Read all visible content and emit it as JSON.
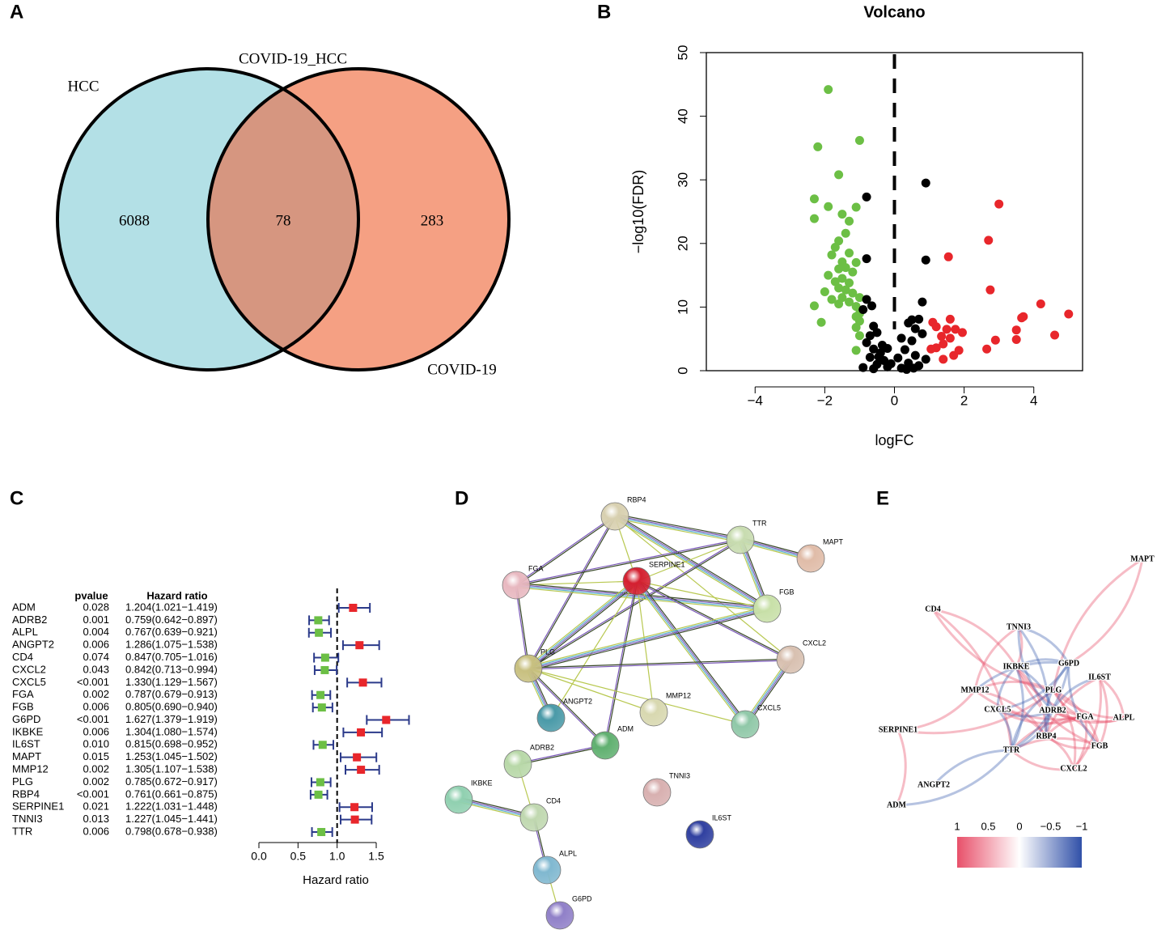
{
  "chart_data": [
    {
      "type": "venn",
      "panel": "A",
      "sets": [
        "HCC",
        "COVID-19"
      ],
      "intersection_label": "COVID-19_HCC",
      "counts": [
        6088,
        78,
        283
      ],
      "colors": [
        "#b3e0e6",
        "#f5a083",
        "#d69680"
      ]
    },
    {
      "type": "scatter",
      "panel": "B",
      "title": "Volcano",
      "xlabel": "logFC",
      "ylabel": "−log10(FDR)",
      "xlim": [
        -5.4,
        5.4
      ],
      "ylim": [
        0,
        50
      ],
      "xticks": [
        {
          "value": -4,
          "label": "−4"
        },
        {
          "value": -2,
          "label": "−2"
        },
        0,
        2,
        4
      ],
      "yticks": [
        0,
        10,
        20,
        30,
        40,
        50
      ],
      "vline": 0,
      "series": [
        {
          "color": "#6cbf45",
          "x": [
            -1.9,
            -2.2,
            -1.0,
            -1.6,
            -2.3,
            -1.9,
            -1.1,
            -1.5,
            -2.3,
            -1.3,
            -1.4,
            -1.6,
            -1.7,
            -1.8,
            -1.3,
            -1.5,
            -1.1,
            -1.6,
            -1.4,
            -1.2,
            -1.9,
            -1.5,
            -1.7,
            -1.3,
            -1.6,
            -1.4,
            -2.0,
            -1.2,
            -1.5,
            -1.8,
            -1.0,
            -1.3,
            -1.6,
            -2.3,
            -1.1,
            -1.0,
            -1.1,
            -1.0,
            -2.1,
            -1.1,
            -1.0,
            -1.1
          ],
          "values": [
            44.2,
            35.2,
            36.2,
            30.8,
            27,
            25.8,
            25.7,
            24.6,
            23.9,
            23.5,
            21.6,
            20.4,
            19.4,
            18.2,
            18.5,
            17.1,
            17,
            16,
            16.2,
            15.5,
            15,
            14.5,
            14,
            13.8,
            13,
            12.7,
            12.4,
            12.2,
            11.5,
            11.2,
            11.5,
            10.8,
            10.5,
            10.2,
            10.1,
            9,
            8.5,
            7.8,
            7.6,
            6.8,
            5.5,
            3.2
          ]
        },
        {
          "color": "#e8262b",
          "x": [
            3.0,
            2.7,
            1.55,
            2.75,
            4.2,
            5.0,
            3.7,
            3.65,
            1.1,
            1.6,
            1.2,
            1.5,
            1.75,
            1.95,
            3.5,
            1.35,
            1.6,
            4.6,
            2.9,
            3.5,
            1.4,
            1.2,
            1.05,
            2.65,
            1.85,
            1.7,
            1.4
          ],
          "values": [
            26.2,
            20.5,
            17.9,
            12.7,
            10.5,
            8.9,
            8.5,
            8.3,
            7.6,
            8.1,
            6.9,
            6.5,
            6.5,
            6.0,
            6.4,
            5.4,
            5.1,
            5.6,
            4.8,
            4.9,
            4.2,
            3.6,
            3.4,
            3.4,
            3.2,
            2.4,
            1.8
          ]
        },
        {
          "color": "#000000",
          "x": [
            0.9,
            -0.8,
            0.9,
            -0.8,
            0.8,
            -0.8,
            -0.65,
            -0.9,
            0.7,
            0.4,
            0.5,
            -0.6,
            -0.7,
            -0.5,
            -0.8,
            -0.6,
            -0.4,
            -0.7,
            -0.3,
            -0.5,
            -0.2,
            -0.9,
            0.2,
            0.4,
            0.6,
            0.3,
            0.5,
            0.8,
            0.6,
            0.1,
            -0.1,
            0.7,
            -0.6,
            0.35,
            -0.35,
            0.2,
            -0.2,
            0.9,
            -0.45,
            0.55
          ],
          "values": [
            29.5,
            27.3,
            17.4,
            17.6,
            10.8,
            11.2,
            10.2,
            9.6,
            8.1,
            7.5,
            8.0,
            7,
            5.5,
            6,
            4.4,
            3.4,
            2.8,
            2.1,
            1.6,
            1.0,
            0.6,
            0.5,
            0.4,
            1.2,
            2.4,
            3.3,
            4.7,
            5.8,
            6.6,
            2.0,
            1.1,
            0.8,
            0.3,
            0.2,
            4.0,
            5.1,
            3.5,
            1.8,
            2.2,
            0.4
          ]
        }
      ]
    },
    {
      "type": "forest",
      "panel": "C",
      "columns": [
        "pvalue",
        "Hazard ratio"
      ],
      "categories": [
        "ADM",
        "ADRB2",
        "ALPL",
        "ANGPT2",
        "CD4",
        "CXCL2",
        "CXCL5",
        "FGA",
        "FGB",
        "G6PD",
        "IKBKE",
        "IL6ST",
        "MAPT",
        "MMP12",
        "PLG",
        "RBP4",
        "SERPINE1",
        "TNNI3",
        "TTR"
      ],
      "pvalues": [
        "0.028",
        "0.001",
        "0.004",
        "0.006",
        "0.074",
        "0.043",
        "<0.001",
        "0.002",
        "0.006",
        "<0.001",
        "0.006",
        "0.010",
        "0.015",
        "0.002",
        "0.002",
        "<0.001",
        "0.021",
        "0.013",
        "0.006"
      ],
      "values": [
        1.204,
        0.759,
        0.767,
        1.286,
        0.847,
        0.842,
        1.33,
        0.787,
        0.805,
        1.627,
        1.304,
        0.815,
        1.253,
        1.305,
        0.785,
        0.761,
        1.222,
        1.227,
        0.798
      ],
      "lower": [
        1.021,
        0.642,
        0.639,
        1.075,
        0.705,
        0.713,
        1.129,
        0.679,
        0.69,
        1.379,
        1.08,
        0.698,
        1.045,
        1.107,
        0.672,
        0.661,
        1.031,
        1.045,
        0.678
      ],
      "upper": [
        1.419,
        0.897,
        0.921,
        1.538,
        1.016,
        0.994,
        1.567,
        0.913,
        0.94,
        1.919,
        1.574,
        0.952,
        1.502,
        1.538,
        0.917,
        0.875,
        1.448,
        1.441,
        0.938
      ],
      "value_labels": [
        "1.204(1.021−1.419)",
        "0.759(0.642−0.897)",
        "0.767(0.639−0.921)",
        "1.286(1.075−1.538)",
        "0.847(0.705−1.016)",
        "0.842(0.713−0.994)",
        "1.330(1.129−1.567)",
        "0.787(0.679−0.913)",
        "0.805(0.690−0.940)",
        "1.627(1.379−1.919)",
        "1.304(1.080−1.574)",
        "0.815(0.698−0.952)",
        "1.253(1.045−1.502)",
        "1.305(1.107−1.538)",
        "0.785(0.672−0.917)",
        "0.761(0.661−0.875)",
        "1.222(1.031−1.448)",
        "1.227(1.045−1.441)",
        "0.798(0.678−0.938)"
      ],
      "xlim": [
        0,
        1.5
      ],
      "xticks": [
        {
          "value": 0,
          "label": "0.0"
        },
        0.5,
        {
          "value": 1,
          "label": "1.0"
        },
        1.5
      ],
      "xlabel": "Hazard ratio",
      "refline": 1,
      "color_above": "#e8262b",
      "color_below": "#6cbf45",
      "ci_color": "#2b3a8a"
    },
    {
      "type": "network",
      "panel": "D",
      "nodes": [
        "RBP4",
        "TTR",
        "MAPT",
        "FGA",
        "SERPINE1",
        "FGB",
        "PLG",
        "CXCL2",
        "ANGPT2",
        "MMP12",
        "CXCL5",
        "ADM",
        "ADRB2",
        "IKBKE",
        "CD4",
        "TNNI3",
        "IL6ST",
        "ALPL",
        "G6PD"
      ],
      "edges": [
        [
          "RBP4",
          "TTR"
        ],
        [
          "RBP4",
          "FGA"
        ],
        [
          "RBP4",
          "SERPINE1"
        ],
        [
          "RBP4",
          "FGB"
        ],
        [
          "RBP4",
          "PLG"
        ],
        [
          "RBP4",
          "CXCL2"
        ],
        [
          "TTR",
          "MAPT"
        ],
        [
          "TTR",
          "FGA"
        ],
        [
          "TTR",
          "SERPINE1"
        ],
        [
          "TTR",
          "FGB"
        ],
        [
          "TTR",
          "PLG"
        ],
        [
          "FGA",
          "SERPINE1"
        ],
        [
          "FGA",
          "FGB"
        ],
        [
          "FGA",
          "PLG"
        ],
        [
          "SERPINE1",
          "FGB"
        ],
        [
          "SERPINE1",
          "PLG"
        ],
        [
          "SERPINE1",
          "CXCL2"
        ],
        [
          "SERPINE1",
          "MMP12"
        ],
        [
          "SERPINE1",
          "CXCL5"
        ],
        [
          "SERPINE1",
          "ADM"
        ],
        [
          "SERPINE1",
          "ANGPT2"
        ],
        [
          "FGB",
          "PLG"
        ],
        [
          "PLG",
          "CXCL2"
        ],
        [
          "PLG",
          "MMP12"
        ],
        [
          "PLG",
          "ANGPT2"
        ],
        [
          "PLG",
          "ADM"
        ],
        [
          "PLG",
          "CXCL5"
        ],
        [
          "CXCL2",
          "CXCL5"
        ],
        [
          "ADM",
          "ADRB2"
        ],
        [
          "ADRB2",
          "CD4"
        ],
        [
          "IKBKE",
          "CD4"
        ],
        [
          "CD4",
          "ALPL"
        ],
        [
          "ALPL",
          "G6PD"
        ]
      ]
    },
    {
      "type": "correlation_network",
      "panel": "E",
      "nodes": [
        "MAPT",
        "CD4",
        "TNNI3",
        "G6PD",
        "IKBKE",
        "IL6ST",
        "MMP12",
        "PLG",
        "CXCL5",
        "ADRB2",
        "FGA",
        "ALPL",
        "RBP4",
        "SERPINE1",
        "FGB",
        "TTR",
        "CXCL2",
        "ANGPT2",
        "ADM"
      ],
      "colorbar": {
        "clim": [
          1,
          -1
        ],
        "ticks": [
          1,
          0.5,
          0,
          {
            "value": -0.5,
            "label": "−0.5"
          },
          {
            "value": -1,
            "label": "−1"
          }
        ],
        "colors": [
          "#e8506a",
          "#ffffff",
          "#3050a8"
        ]
      }
    }
  ]
}
